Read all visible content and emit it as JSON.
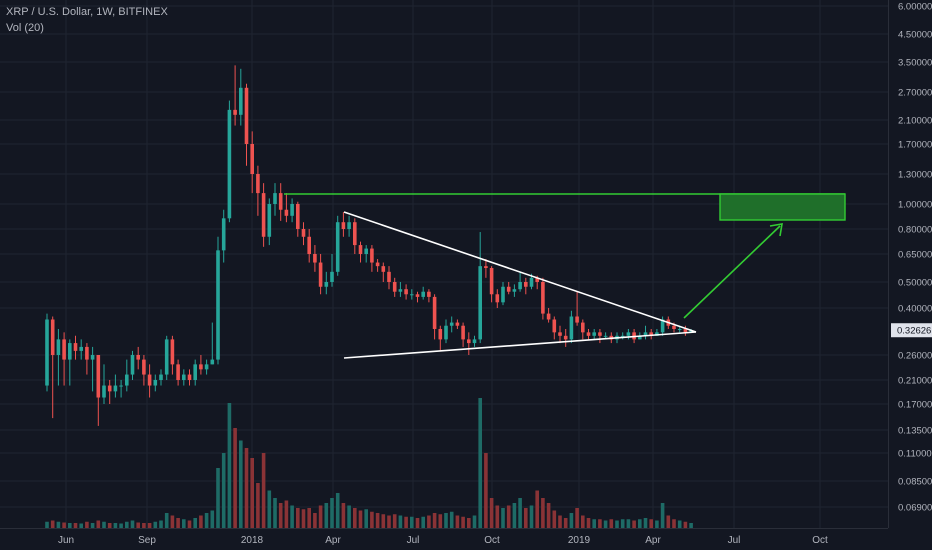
{
  "header": {
    "title": "XRP / U.S. Dollar, 1W, BITFINEX",
    "volume_label": "Vol (20)"
  },
  "colors": {
    "background": "#131722",
    "grid": "#1f2431",
    "up": "#26a69a",
    "down": "#ef5350",
    "up_volume": "#1e6b66",
    "down_volume": "#8a3336",
    "axis_text": "#b2b5be",
    "drawing_white": "#ffffff",
    "drawing_green": "#33cc33",
    "target_box_fill": "#1f6f2a",
    "price_badge": "#e0e3eb",
    "price_badge_text": "#131722"
  },
  "chart_data": {
    "type": "candlestick",
    "title": "XRP / U.S. Dollar, 1W, BITFINEX",
    "scale": "log",
    "grid": true,
    "y_ticks": [
      "6.00000",
      "4.50000",
      "3.50000",
      "2.70000",
      "2.10000",
      "1.70000",
      "1.30000",
      "1.00000",
      "0.80000",
      "0.65000",
      "0.50000",
      "0.40000",
      "0.26000",
      "0.21000",
      "0.17000",
      "0.13500",
      "0.11000",
      "0.08500",
      "0.06900"
    ],
    "x_ticks": [
      "Jun",
      "Sep",
      "2018",
      "Apr",
      "Jul",
      "Oct",
      "2019",
      "Apr",
      "Jul",
      "Oct"
    ],
    "last_price": "0.32626",
    "candles": [
      [
        0.2,
        0.36,
        0.38,
        0.19
      ],
      [
        0.36,
        0.26,
        0.37,
        0.15
      ],
      [
        0.26,
        0.3,
        0.33,
        0.2
      ],
      [
        0.3,
        0.25,
        0.32,
        0.2
      ],
      [
        0.25,
        0.29,
        0.3,
        0.2
      ],
      [
        0.29,
        0.27,
        0.31,
        0.25
      ],
      [
        0.27,
        0.28,
        0.3,
        0.25
      ],
      [
        0.28,
        0.25,
        0.29,
        0.22
      ],
      [
        0.25,
        0.26,
        0.28,
        0.19
      ],
      [
        0.26,
        0.18,
        0.26,
        0.14
      ],
      [
        0.18,
        0.2,
        0.24,
        0.17
      ],
      [
        0.2,
        0.19,
        0.21,
        0.17
      ],
      [
        0.19,
        0.2,
        0.22,
        0.18
      ],
      [
        0.2,
        0.2,
        0.21,
        0.18
      ],
      [
        0.2,
        0.22,
        0.25,
        0.19
      ],
      [
        0.22,
        0.26,
        0.27,
        0.21
      ],
      [
        0.26,
        0.25,
        0.28,
        0.23
      ],
      [
        0.25,
        0.22,
        0.26,
        0.2
      ],
      [
        0.22,
        0.2,
        0.24,
        0.18
      ],
      [
        0.2,
        0.21,
        0.22,
        0.19
      ],
      [
        0.21,
        0.22,
        0.23,
        0.2
      ],
      [
        0.22,
        0.3,
        0.31,
        0.21
      ],
      [
        0.3,
        0.24,
        0.31,
        0.22
      ],
      [
        0.24,
        0.21,
        0.25,
        0.2
      ],
      [
        0.21,
        0.22,
        0.23,
        0.2
      ],
      [
        0.22,
        0.21,
        0.23,
        0.2
      ],
      [
        0.21,
        0.24,
        0.25,
        0.2
      ],
      [
        0.24,
        0.23,
        0.26,
        0.22
      ],
      [
        0.23,
        0.24,
        0.25,
        0.22
      ],
      [
        0.24,
        0.25,
        0.35,
        0.24
      ],
      [
        0.25,
        0.67,
        0.75,
        0.24
      ],
      [
        0.67,
        0.88,
        0.95,
        0.6
      ],
      [
        0.88,
        2.3,
        2.5,
        0.85
      ],
      [
        2.3,
        2.2,
        3.4,
        2.0
      ],
      [
        2.2,
        2.8,
        3.3,
        2.0
      ],
      [
        2.8,
        1.7,
        2.9,
        1.4
      ],
      [
        1.7,
        1.3,
        1.9,
        1.1
      ],
      [
        1.3,
        1.1,
        1.4,
        0.9
      ],
      [
        1.1,
        0.75,
        1.2,
        0.69
      ],
      [
        0.75,
        1.0,
        1.05,
        0.7
      ],
      [
        1.0,
        1.1,
        1.2,
        0.9
      ],
      [
        1.1,
        0.95,
        1.2,
        0.86
      ],
      [
        0.95,
        0.9,
        1.1,
        0.85
      ],
      [
        0.9,
        1.0,
        1.05,
        0.85
      ],
      [
        1.0,
        0.8,
        1.02,
        0.75
      ],
      [
        0.8,
        0.75,
        0.85,
        0.7
      ],
      [
        0.75,
        0.65,
        0.8,
        0.6
      ],
      [
        0.65,
        0.6,
        0.7,
        0.55
      ],
      [
        0.6,
        0.48,
        0.65,
        0.45
      ],
      [
        0.48,
        0.5,
        0.55,
        0.45
      ],
      [
        0.5,
        0.55,
        0.65,
        0.48
      ],
      [
        0.55,
        0.85,
        0.9,
        0.53
      ],
      [
        0.85,
        0.8,
        0.93,
        0.75
      ],
      [
        0.8,
        0.85,
        0.9,
        0.75
      ],
      [
        0.85,
        0.7,
        0.88,
        0.65
      ],
      [
        0.7,
        0.65,
        0.72,
        0.6
      ],
      [
        0.65,
        0.68,
        0.7,
        0.6
      ],
      [
        0.68,
        0.6,
        0.7,
        0.55
      ],
      [
        0.6,
        0.58,
        0.62,
        0.55
      ],
      [
        0.58,
        0.55,
        0.6,
        0.5
      ],
      [
        0.55,
        0.5,
        0.58,
        0.47
      ],
      [
        0.5,
        0.46,
        0.52,
        0.44
      ],
      [
        0.46,
        0.47,
        0.5,
        0.44
      ],
      [
        0.47,
        0.45,
        0.49,
        0.43
      ],
      [
        0.45,
        0.45,
        0.47,
        0.43
      ],
      [
        0.45,
        0.44,
        0.46,
        0.42
      ],
      [
        0.44,
        0.46,
        0.48,
        0.43
      ],
      [
        0.46,
        0.44,
        0.47,
        0.42
      ],
      [
        0.44,
        0.33,
        0.45,
        0.3
      ],
      [
        0.33,
        0.3,
        0.34,
        0.27
      ],
      [
        0.3,
        0.34,
        0.36,
        0.29
      ],
      [
        0.34,
        0.35,
        0.37,
        0.32
      ],
      [
        0.35,
        0.34,
        0.36,
        0.33
      ],
      [
        0.34,
        0.3,
        0.35,
        0.28
      ],
      [
        0.3,
        0.29,
        0.32,
        0.26
      ],
      [
        0.29,
        0.3,
        0.31,
        0.28
      ],
      [
        0.3,
        0.58,
        0.78,
        0.29
      ],
      [
        0.58,
        0.57,
        0.62,
        0.52
      ],
      [
        0.57,
        0.45,
        0.58,
        0.42
      ],
      [
        0.45,
        0.42,
        0.47,
        0.4
      ],
      [
        0.42,
        0.48,
        0.5,
        0.41
      ],
      [
        0.48,
        0.46,
        0.5,
        0.45
      ],
      [
        0.46,
        0.47,
        0.49,
        0.44
      ],
      [
        0.47,
        0.5,
        0.55,
        0.46
      ],
      [
        0.5,
        0.48,
        0.52,
        0.45
      ],
      [
        0.48,
        0.52,
        0.54,
        0.47
      ],
      [
        0.52,
        0.5,
        0.53,
        0.47
      ],
      [
        0.5,
        0.38,
        0.52,
        0.36
      ],
      [
        0.38,
        0.36,
        0.4,
        0.35
      ],
      [
        0.36,
        0.32,
        0.37,
        0.3
      ],
      [
        0.32,
        0.31,
        0.34,
        0.29
      ],
      [
        0.31,
        0.3,
        0.33,
        0.28
      ],
      [
        0.3,
        0.37,
        0.39,
        0.29
      ],
      [
        0.37,
        0.35,
        0.46,
        0.34
      ],
      [
        0.35,
        0.32,
        0.36,
        0.3
      ],
      [
        0.32,
        0.31,
        0.33,
        0.3
      ],
      [
        0.31,
        0.32,
        0.33,
        0.3
      ],
      [
        0.32,
        0.31,
        0.33,
        0.29
      ],
      [
        0.31,
        0.31,
        0.32,
        0.3
      ],
      [
        0.31,
        0.3,
        0.32,
        0.29
      ],
      [
        0.3,
        0.31,
        0.32,
        0.29
      ],
      [
        0.31,
        0.31,
        0.32,
        0.3
      ],
      [
        0.31,
        0.32,
        0.33,
        0.3
      ],
      [
        0.32,
        0.3,
        0.33,
        0.29
      ],
      [
        0.3,
        0.31,
        0.32,
        0.3
      ],
      [
        0.31,
        0.32,
        0.34,
        0.3
      ],
      [
        0.32,
        0.31,
        0.33,
        0.3
      ],
      [
        0.31,
        0.32,
        0.33,
        0.31
      ],
      [
        0.32,
        0.36,
        0.37,
        0.31
      ],
      [
        0.36,
        0.34,
        0.37,
        0.33
      ],
      [
        0.34,
        0.33,
        0.35,
        0.32
      ],
      [
        0.33,
        0.33,
        0.34,
        0.32
      ],
      [
        0.33,
        0.32,
        0.34,
        0.31
      ],
      [
        0.32,
        0.326,
        0.33,
        0.32
      ]
    ],
    "volume": [
      2.5,
      3,
      2.5,
      2.2,
      2,
      2,
      1.8,
      2.5,
      2,
      3,
      2.5,
      2,
      2,
      1.8,
      2.5,
      3,
      2.2,
      2,
      2,
      2.5,
      3,
      6,
      5,
      4,
      3.5,
      3,
      4,
      5,
      6,
      7,
      24,
      30,
      50,
      40,
      35,
      32,
      28,
      18,
      30,
      15,
      12,
      10,
      11,
      9,
      8,
      7.5,
      8,
      6,
      9,
      10,
      12,
      14,
      10,
      9,
      8,
      7,
      7.5,
      6.5,
      6,
      5.5,
      5,
      5.5,
      5,
      4.5,
      4.5,
      4,
      4.5,
      5,
      6,
      5.5,
      6,
      6.5,
      5,
      4.5,
      4,
      5,
      52,
      30,
      12,
      9,
      8,
      9,
      10,
      12,
      8,
      9,
      15,
      12,
      10,
      7,
      5,
      4,
      6,
      8,
      5,
      4,
      3.5,
      3.5,
      3,
      3.5,
      3,
      3.5,
      3.5,
      3,
      3.5,
      4,
      3.5,
      3,
      10,
      5,
      3.5,
      3,
      2.5,
      2
    ]
  }
}
